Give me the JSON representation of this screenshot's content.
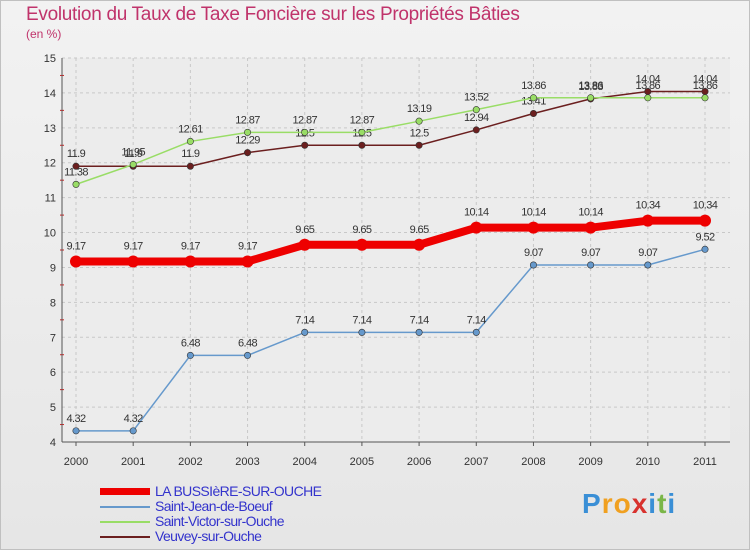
{
  "title": "Evolution du Taux de Taxe Foncière sur les Propriétés Bâties",
  "subtitle": "(en %)",
  "brand": {
    "letters": [
      "P",
      "r",
      "o",
      "x",
      "i",
      "t",
      "i"
    ],
    "colors": [
      "#3a8fd6",
      "#f0a020",
      "#f0a020",
      "#d8322e",
      "#3a8fd6",
      "#7ab648",
      "#3a8fd6"
    ]
  },
  "chart_data": {
    "type": "line",
    "title": "Evolution du Taux de Taxe Foncière sur les Propriétés Bâties",
    "ylabel": "(en %)",
    "xlabel": "",
    "x": [
      "2000",
      "2001",
      "2002",
      "2003",
      "2004",
      "2005",
      "2006",
      "2007",
      "2008",
      "2009",
      "2010",
      "2011"
    ],
    "ylim": [
      4,
      15
    ],
    "yticks": [
      "4",
      "5",
      "6",
      "7",
      "8",
      "9",
      "10",
      "11",
      "12",
      "13",
      "14",
      "15"
    ],
    "grid": true,
    "legend_position": "bottom-left",
    "series": [
      {
        "name": "Veuvey-sur-Ouche",
        "color": "#6b1f1f",
        "values": [
          11.9,
          11.9,
          11.9,
          12.29,
          12.5,
          12.5,
          12.5,
          12.94,
          13.41,
          13.83,
          14.04,
          14.04
        ],
        "labels": [
          "11.9",
          "11.9",
          "11.9",
          "12.29",
          "12.5",
          "12.5",
          "12.5",
          "12.94",
          "13.41",
          "13.83",
          "14.04",
          "14.04"
        ]
      },
      {
        "name": "Saint-Victor-sur-Ouche",
        "color": "#99dd66",
        "values": [
          11.38,
          11.95,
          12.61,
          12.87,
          12.87,
          12.87,
          13.19,
          13.52,
          13.86,
          13.86,
          13.86,
          13.86
        ],
        "labels": [
          "11.38",
          "11.95",
          "12.61",
          "12.87",
          "12.87",
          "12.87",
          "13.19",
          "13.52",
          "13.86",
          "13.86",
          "13.86",
          "13.86"
        ]
      },
      {
        "name": "Saint-Jean-de-Boeuf",
        "color": "#6699cc",
        "values": [
          4.32,
          4.32,
          6.48,
          6.48,
          7.14,
          7.14,
          7.14,
          7.14,
          9.07,
          9.07,
          9.07,
          9.52
        ],
        "labels": [
          "4.32",
          "4.32",
          "6.48",
          "6.48",
          "7.14",
          "7.14",
          "7.14",
          "7.14",
          "9.07",
          "9.07",
          "9.07",
          "9.52"
        ]
      },
      {
        "name": "LA BUSSIèRE-SUR-OUCHE",
        "color": "#ee0000",
        "values": [
          9.17,
          9.17,
          9.17,
          9.17,
          9.65,
          9.65,
          9.65,
          10.14,
          10.14,
          10.14,
          10.34,
          10.34
        ],
        "labels": [
          "9.17",
          "9.17",
          "9.17",
          "9.17",
          "9.65",
          "9.65",
          "9.65",
          "10.14",
          "10.14",
          "10.14",
          "10.34",
          "10.34"
        ]
      }
    ],
    "legend": [
      "LA BUSSIèRE-SUR-OUCHE",
      "Saint-Jean-de-Boeuf",
      "Saint-Victor-sur-Ouche",
      "Veuvey-sur-Ouche"
    ]
  }
}
